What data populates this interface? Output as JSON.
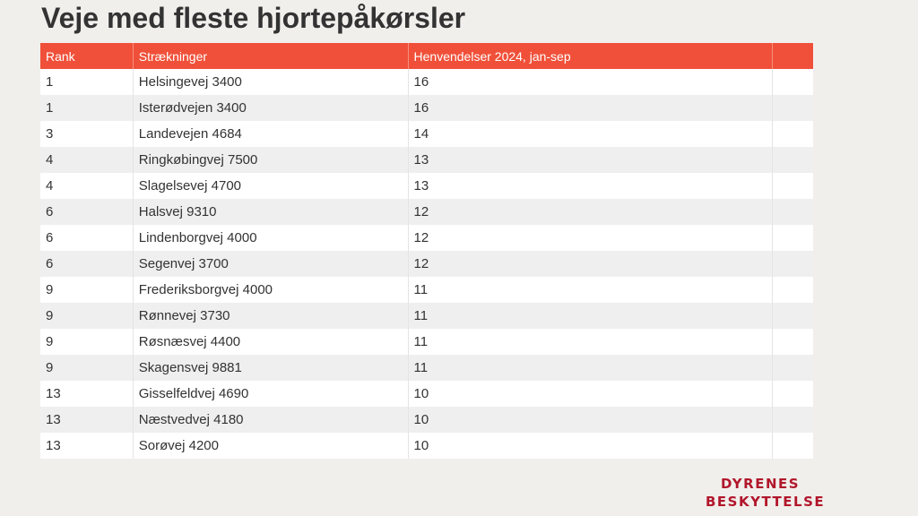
{
  "title": "Veje med fleste hjortepåkørsler",
  "table": {
    "headers": [
      "Rank",
      "Strækninger",
      "Henvendelser 2024, jan-sep"
    ],
    "rows": [
      {
        "rank": "1",
        "road": "Helsingevej 3400",
        "count": "16"
      },
      {
        "rank": "1",
        "road": "Isterødvejen 3400",
        "count": "16"
      },
      {
        "rank": "3",
        "road": "Landevejen 4684",
        "count": "14"
      },
      {
        "rank": "4",
        "road": "Ringkøbingvej 7500",
        "count": "13"
      },
      {
        "rank": "4",
        "road": "Slagelsevej 4700",
        "count": "13"
      },
      {
        "rank": "6",
        "road": "Halsvej 9310",
        "count": "12"
      },
      {
        "rank": "6",
        "road": "Lindenborgvej 4000",
        "count": "12"
      },
      {
        "rank": "6",
        "road": "Segenvej 3700",
        "count": "12"
      },
      {
        "rank": "9",
        "road": "Frederiksborgvej 4000",
        "count": "11"
      },
      {
        "rank": "9",
        "road": "Rønnevej 3730",
        "count": "11"
      },
      {
        "rank": "9",
        "road": "Røsnæsvej 4400",
        "count": "11"
      },
      {
        "rank": "9",
        "road": "Skagensvej 9881",
        "count": "11"
      },
      {
        "rank": "13",
        "road": "Gisselfeldvej 4690",
        "count": "10"
      },
      {
        "rank": "13",
        "road": "Næstvedvej 4180",
        "count": "10"
      },
      {
        "rank": "13",
        "road": "Sorøvej 4200",
        "count": "10"
      }
    ]
  },
  "logo": {
    "line1": "DYRENES",
    "line2": "BESKYTTELSE"
  },
  "colors": {
    "header_bg": "#f05039",
    "logo": "#b1162b",
    "title": "#333333"
  }
}
